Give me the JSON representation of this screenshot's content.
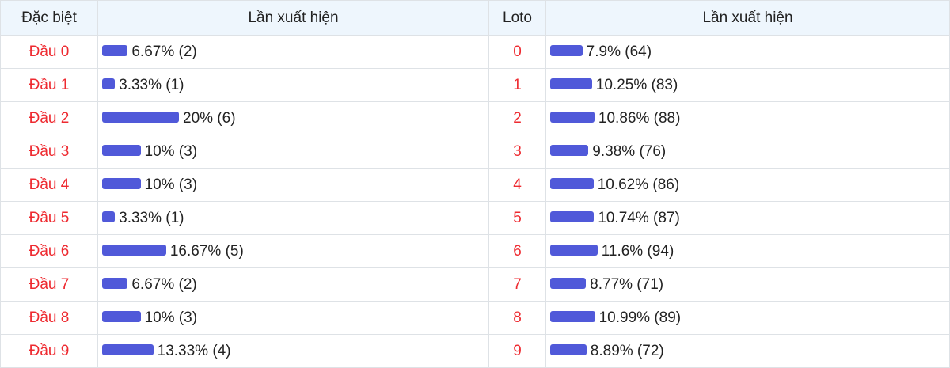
{
  "headers": {
    "special": "Đặc biệt",
    "appear1": "Lần xuất hiện",
    "loto": "Loto",
    "appear2": "Lần xuất hiện"
  },
  "bar_color": "#5059d9",
  "label_color": "#ee2a30",
  "rows": [
    {
      "dau": "Đầu 0",
      "dau_pct": 6.67,
      "dau_text": "6.67% (2)",
      "loto": "0",
      "loto_pct": 7.9,
      "loto_text": "7.9% (64)"
    },
    {
      "dau": "Đầu 1",
      "dau_pct": 3.33,
      "dau_text": "3.33% (1)",
      "loto": "1",
      "loto_pct": 10.25,
      "loto_text": "10.25% (83)"
    },
    {
      "dau": "Đầu 2",
      "dau_pct": 20,
      "dau_text": "20% (6)",
      "loto": "2",
      "loto_pct": 10.86,
      "loto_text": "10.86% (88)"
    },
    {
      "dau": "Đầu 3",
      "dau_pct": 10,
      "dau_text": "10% (3)",
      "loto": "3",
      "loto_pct": 9.38,
      "loto_text": "9.38% (76)"
    },
    {
      "dau": "Đầu 4",
      "dau_pct": 10,
      "dau_text": "10% (3)",
      "loto": "4",
      "loto_pct": 10.62,
      "loto_text": "10.62% (86)"
    },
    {
      "dau": "Đầu 5",
      "dau_pct": 3.33,
      "dau_text": "3.33% (1)",
      "loto": "5",
      "loto_pct": 10.74,
      "loto_text": "10.74% (87)"
    },
    {
      "dau": "Đầu 6",
      "dau_pct": 16.67,
      "dau_text": "16.67% (5)",
      "loto": "6",
      "loto_pct": 11.6,
      "loto_text": "11.6% (94)"
    },
    {
      "dau": "Đầu 7",
      "dau_pct": 6.67,
      "dau_text": "6.67% (2)",
      "loto": "7",
      "loto_pct": 8.77,
      "loto_text": "8.77% (71)"
    },
    {
      "dau": "Đầu 8",
      "dau_pct": 10,
      "dau_text": "10% (3)",
      "loto": "8",
      "loto_pct": 10.99,
      "loto_text": "10.99% (89)"
    },
    {
      "dau": "Đầu 9",
      "dau_pct": 13.33,
      "dau_text": "13.33% (4)",
      "loto": "9",
      "loto_pct": 8.89,
      "loto_text": "8.89% (72)"
    }
  ]
}
